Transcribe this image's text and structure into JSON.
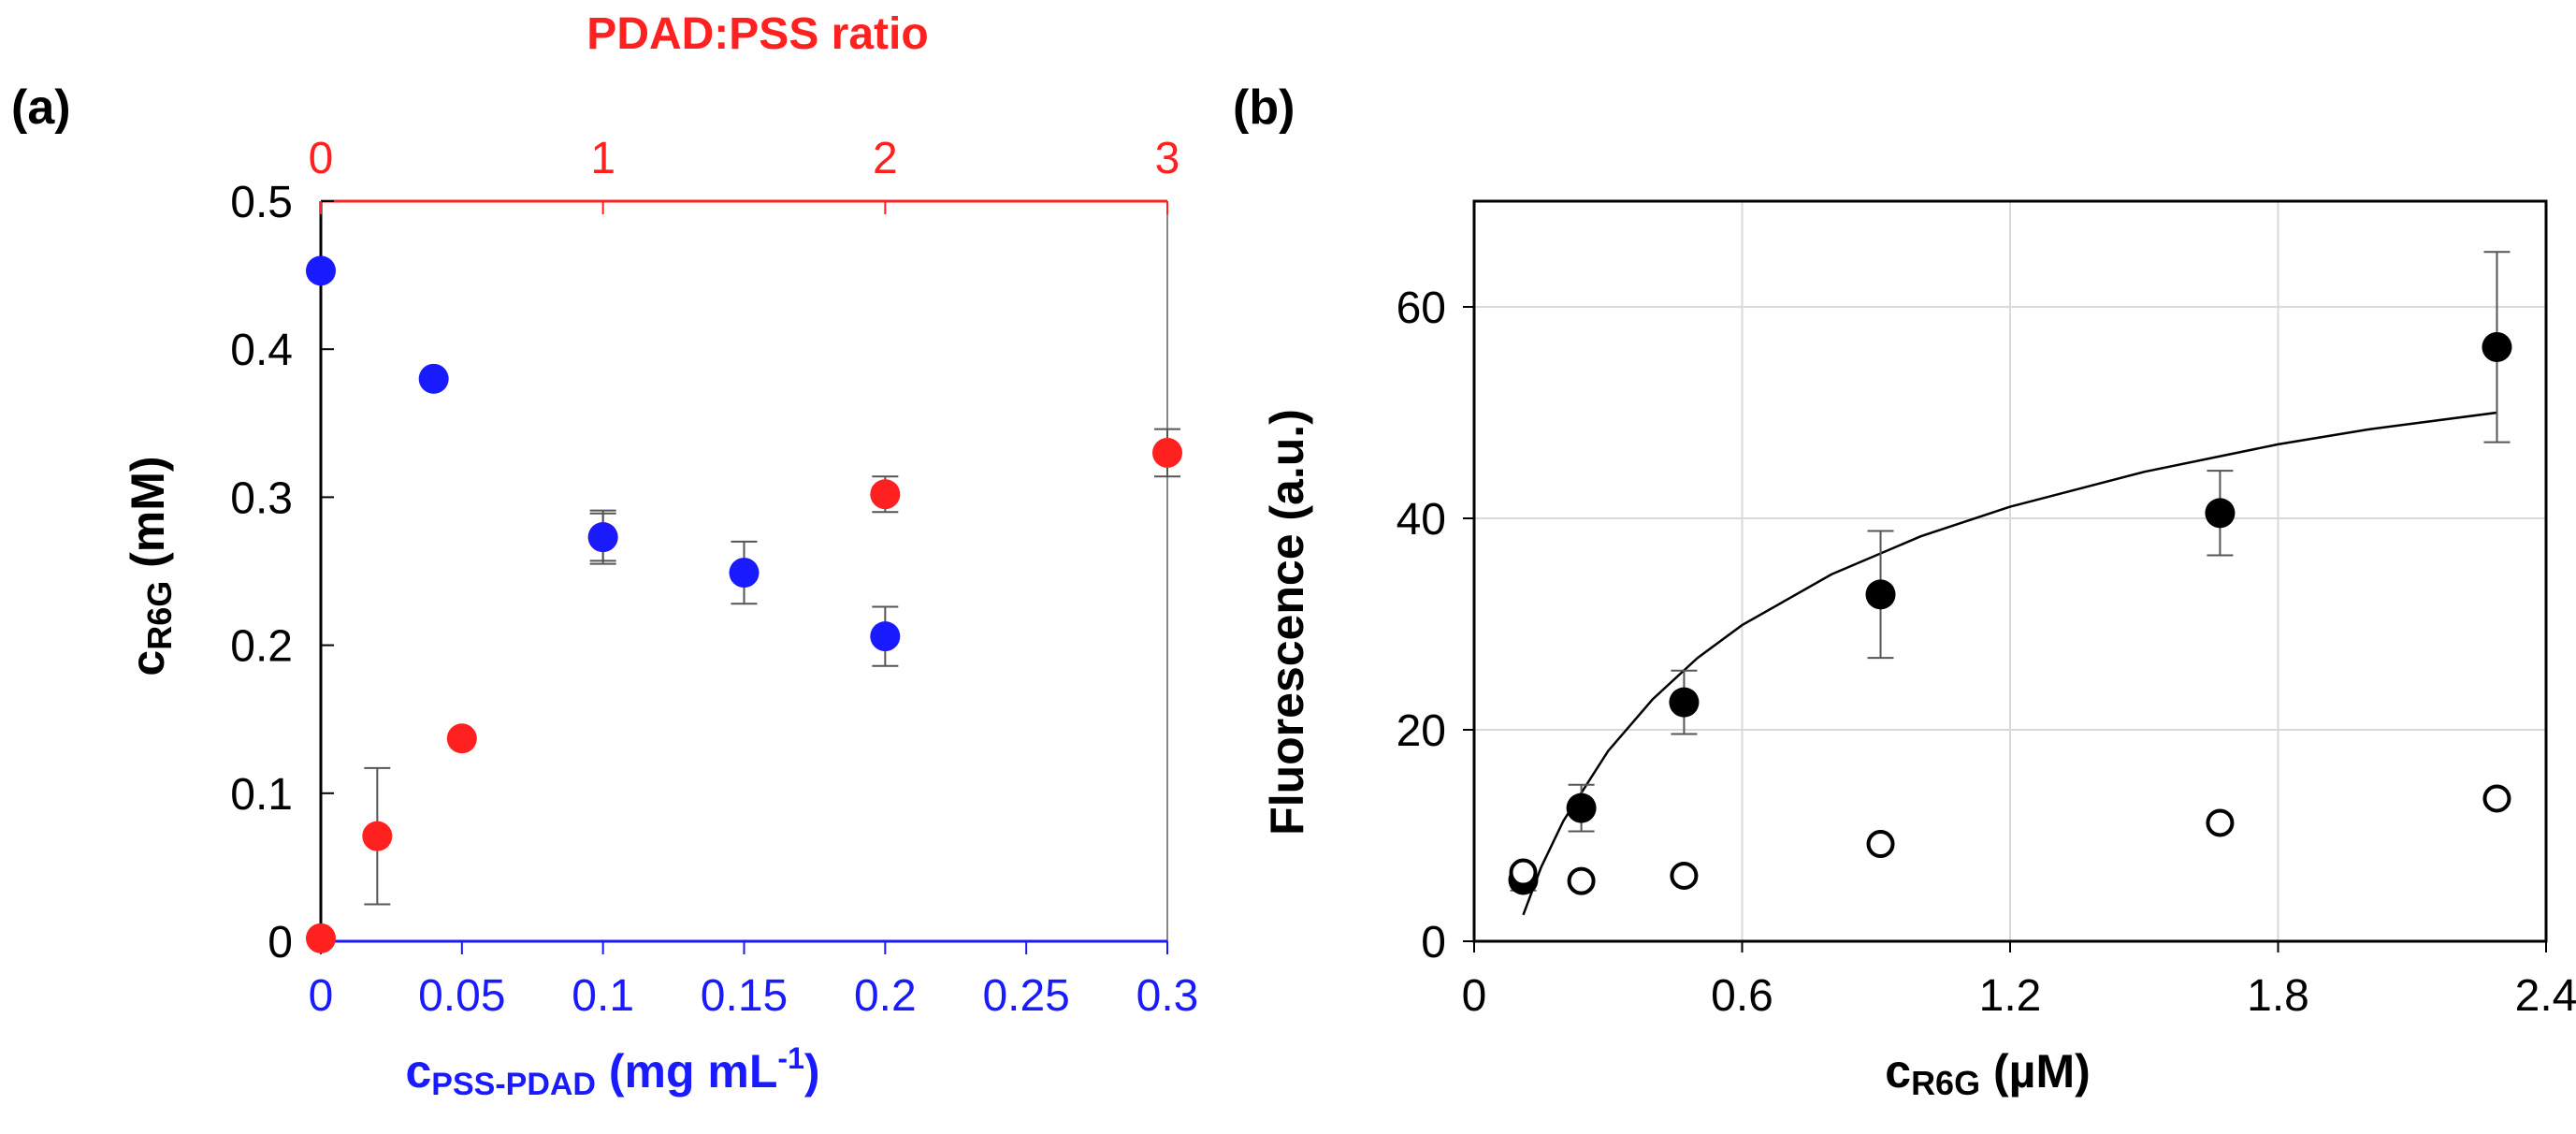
{
  "colors": {
    "red": "#ff2020",
    "blue": "#1a1aff",
    "blue_text": "#1a1aff",
    "black": "#000000",
    "grid": "#d9d9d9",
    "errorbar": "#555555"
  },
  "chart_data": [
    {
      "panel_label": "(a)",
      "type": "scatter",
      "title": "",
      "ylabel_main": "c",
      "ylabel_sub": "R6G",
      "ylabel_unit": " (mM)",
      "ylim": [
        0,
        0.5
      ],
      "yticks": [
        "0",
        "0.1",
        "0.2",
        "0.3",
        "0.4",
        "0.5"
      ],
      "bottom_axis": {
        "label_main": "c",
        "label_sub": "PSS-PDAD",
        "label_unit": " (mg mL",
        "label_sup": "-1",
        "label_close": ")",
        "lim": [
          0,
          0.3
        ],
        "ticks": [
          "0",
          "0.05",
          "0.1",
          "0.15",
          "0.2",
          "0.25",
          "0.3"
        ]
      },
      "top_axis": {
        "label": "PDAD:PSS ratio",
        "lim": [
          0,
          3
        ],
        "ticks": [
          "0",
          "1",
          "2",
          "3"
        ]
      },
      "series": [
        {
          "name": "vs PDAD:PSS ratio (top axis)",
          "color": "red",
          "axis": "top",
          "x": [
            0,
            0.2,
            0.5,
            1.0,
            2.0,
            3.0
          ],
          "y": [
            0.002,
            0.071,
            0.137,
            0.273,
            0.302,
            0.33
          ],
          "err": [
            0,
            0.046,
            0,
            0.018,
            0.012,
            0.016
          ]
        },
        {
          "name": "vs c PSS-PDAD (bottom axis)",
          "color": "blue",
          "axis": "bottom",
          "x": [
            0,
            0.04,
            0.1,
            0.15,
            0.2
          ],
          "y": [
            0.453,
            0.38,
            0.273,
            0.249,
            0.206
          ],
          "err": [
            0,
            0,
            0.016,
            0.021,
            0.02
          ]
        }
      ]
    },
    {
      "panel_label": "(b)",
      "type": "scatter",
      "title": "",
      "ylabel": "Fluorescence (a.u.)",
      "xlabel_main": "c",
      "xlabel_sub": "R6G",
      "xlabel_unit": " (µM)",
      "xlim": [
        0,
        2.4
      ],
      "ylim": [
        0,
        70
      ],
      "xticks": [
        "0",
        "0.6",
        "1.2",
        "1.8",
        "2.4"
      ],
      "yticks": [
        "0",
        "20",
        "40",
        "60"
      ],
      "grid": true,
      "series": [
        {
          "name": "filled",
          "marker": "filled-circle",
          "x": [
            0.11,
            0.24,
            0.47,
            0.91,
            1.67,
            2.29
          ],
          "y": [
            5.8,
            12.6,
            22.6,
            32.8,
            40.5,
            56.2
          ],
          "err": [
            1.0,
            2.2,
            3.0,
            6.0,
            4.0,
            9.0
          ]
        },
        {
          "name": "open",
          "marker": "open-circle",
          "x": [
            0.11,
            0.24,
            0.47,
            0.91,
            1.67,
            2.29
          ],
          "y": [
            6.5,
            5.7,
            6.2,
            9.2,
            11.2,
            13.5
          ],
          "err": [
            0,
            0,
            0,
            0,
            0,
            0
          ]
        }
      ],
      "fit_curve": {
        "x": [
          0.11,
          0.15,
          0.2,
          0.3,
          0.4,
          0.5,
          0.6,
          0.8,
          1.0,
          1.2,
          1.5,
          1.8,
          2.0,
          2.29
        ],
        "y": [
          2.5,
          7.0,
          11.4,
          18.0,
          22.9,
          26.8,
          29.9,
          34.7,
          38.3,
          41.1,
          44.4,
          47.0,
          48.4,
          50.0
        ]
      }
    }
  ]
}
